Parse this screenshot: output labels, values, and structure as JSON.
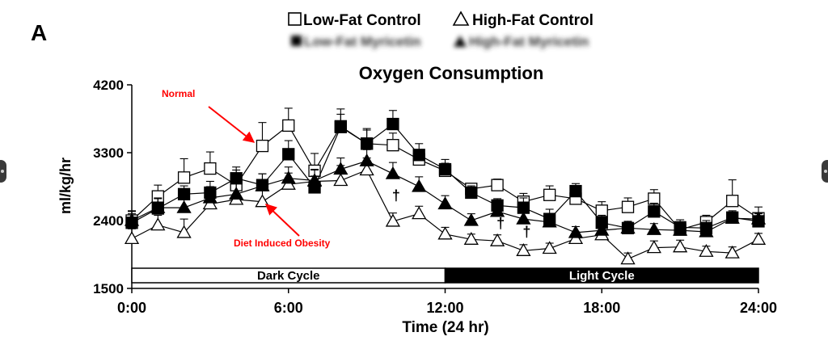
{
  "figure_label": "A",
  "legend": {
    "row1": [
      {
        "marker": "open-square",
        "label": "Low-Fat Control"
      },
      {
        "marker": "open-triangle",
        "label": "High-Fat Control"
      }
    ],
    "row2_blurred": [
      {
        "marker": "filled-square",
        "label": "Low-Fat Myricetin"
      },
      {
        "marker": "filled-triangle",
        "label": "High-Fat Myricetin"
      }
    ]
  },
  "annotations": {
    "normal": "Normal",
    "dio": "Diet Induced Obesity",
    "dagger": "†",
    "color": "#ff0000"
  },
  "cycle_bar": {
    "dark_label": "Dark Cycle",
    "light_label": "Light Cycle",
    "split_x": 12
  },
  "nav": {
    "prev_icon": "chevron-left-icon",
    "next_icon": "chevron-right-icon"
  },
  "chart_data": {
    "type": "line",
    "title": "Oxygen Consumption",
    "xlabel": "Time (24 hr)",
    "ylabel": "ml/kg/hr",
    "xlim": [
      0,
      24
    ],
    "ylim": [
      1500,
      4200
    ],
    "xticks": [
      0,
      6,
      12,
      18,
      24
    ],
    "xtick_labels": [
      "0:00",
      "6:00",
      "12:00",
      "18:00",
      "24:00"
    ],
    "yticks": [
      1500,
      2400,
      3300,
      4200
    ],
    "ytick_labels": [
      "1500",
      "2400",
      "3300",
      "4200"
    ],
    "grid": false,
    "legend_position": "top",
    "x": [
      0,
      1,
      2,
      3,
      4,
      5,
      6,
      7,
      8,
      9,
      10,
      11,
      12,
      13,
      14,
      15,
      16,
      17,
      18,
      19,
      20,
      21,
      22,
      23,
      24
    ],
    "series": [
      {
        "name": "Low-Fat Control",
        "marker": "open-square",
        "values": [
          2400,
          2720,
          2970,
          3090,
          2870,
          3390,
          3660,
          3060,
          3650,
          3420,
          3400,
          3210,
          3060,
          2820,
          2870,
          2650,
          2740,
          2690,
          2530,
          2580,
          2690,
          2280,
          2380,
          2660,
          2430
        ],
        "errors": [
          130,
          150,
          250,
          220,
          200,
          310,
          230,
          230,
          230,
          200,
          160,
          130,
          100,
          70,
          80,
          110,
          120,
          110,
          120,
          120,
          120,
          90,
          90,
          280,
          150
        ]
      },
      {
        "name": "Low-Fat Myricetin",
        "marker": "filled-square",
        "values": [
          2370,
          2560,
          2750,
          2770,
          2960,
          2870,
          3280,
          2840,
          3640,
          3420,
          3680,
          3270,
          3080,
          2770,
          2600,
          2570,
          2420,
          2790,
          2370,
          2300,
          2520,
          2310,
          2300,
          2440,
          2390
        ],
        "errors": [
          120,
          130,
          110,
          150,
          150,
          150,
          180,
          150,
          170,
          180,
          180,
          150,
          130,
          90,
          90,
          130,
          130,
          100,
          100,
          90,
          110,
          100,
          100,
          90,
          100
        ]
      },
      {
        "name": "High-Fat Control",
        "marker": "open-triangle",
        "values": [
          2160,
          2340,
          2240,
          2620,
          2680,
          2650,
          2880,
          2920,
          2930,
          3070,
          2390,
          2490,
          2220,
          2150,
          2130,
          2000,
          2030,
          2160,
          2210,
          1890,
          2040,
          2050,
          1990,
          1970,
          2150
        ],
        "errors": [
          130,
          130,
          180,
          200,
          220,
          180,
          150,
          150,
          200,
          160,
          110,
          100,
          90,
          70,
          80,
          80,
          70,
          90,
          90,
          80,
          90,
          90,
          70,
          80,
          80
        ]
      },
      {
        "name": "High-Fat Myricetin",
        "marker": "filled-triangle",
        "values": [
          2400,
          2570,
          2570,
          2700,
          2750,
          2860,
          2960,
          2930,
          3080,
          3190,
          3020,
          2850,
          2620,
          2400,
          2520,
          2420,
          2380,
          2240,
          2270,
          2300,
          2280,
          2270,
          2250,
          2430,
          2420
        ],
        "errors": [
          120,
          130,
          150,
          150,
          150,
          160,
          150,
          150,
          150,
          150,
          150,
          130,
          110,
          90,
          80,
          90,
          90,
          80,
          80,
          80,
          80,
          80,
          80,
          80,
          80
        ]
      }
    ],
    "dagger_marks": [
      {
        "x": 10,
        "y": 2730
      },
      {
        "x": 14,
        "y": 2360
      },
      {
        "x": 15,
        "y": 2250
      }
    ]
  }
}
